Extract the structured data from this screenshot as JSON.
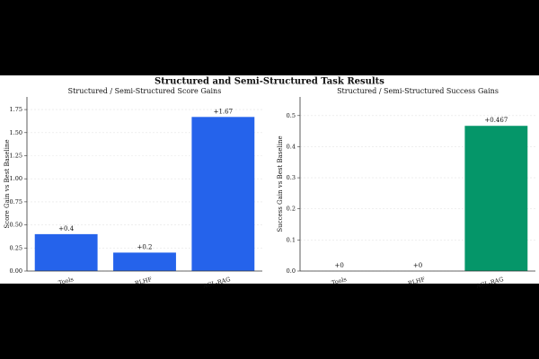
{
  "title": "Structured and Semi-Structured Task Results",
  "chart_data": [
    {
      "type": "bar",
      "title": "Structured / Semi-Structured Score Gains",
      "ylabel": "Score Gain vs Best Baseline",
      "categories": [
        "Tools",
        "RLHF",
        "ACL-RAG"
      ],
      "values": [
        0.4,
        0.2,
        1.67
      ],
      "value_labels": [
        "+0.4",
        "+0.2",
        "+1.67"
      ],
      "color": "#2563eb",
      "ylim": [
        0,
        1.887
      ],
      "yticks": [
        {
          "value": 0,
          "label": "0.00"
        },
        {
          "value": 0.25,
          "label": "0.25"
        },
        {
          "value": 0.5,
          "label": "0.50"
        },
        {
          "value": 0.75,
          "label": "0.75"
        },
        {
          "value": 1,
          "label": "1.00"
        },
        {
          "value": 1.25,
          "label": "1.25"
        },
        {
          "value": 1.5,
          "label": "1.50"
        },
        {
          "value": 1.75,
          "label": "1.75"
        }
      ],
      "grid": true
    },
    {
      "type": "bar",
      "title": "Structured / Semi-Structured Success Gains",
      "ylabel": "Success Gain vs Best Baseline",
      "categories": [
        "Tools",
        "RLHF",
        "ACL-RAG"
      ],
      "values": [
        0,
        0,
        0.467
      ],
      "value_labels": [
        "+0",
        "+0",
        "+0.467"
      ],
      "color": "#059669",
      "ylim": [
        0,
        0.56
      ],
      "yticks": [
        {
          "value": 0,
          "label": "0.0"
        },
        {
          "value": 0.1,
          "label": "0.1"
        },
        {
          "value": 0.2,
          "label": "0.2"
        },
        {
          "value": 0.3,
          "label": "0.3"
        },
        {
          "value": 0.4,
          "label": "0.4"
        },
        {
          "value": 0.5,
          "label": "0.5"
        }
      ],
      "grid": true
    }
  ]
}
